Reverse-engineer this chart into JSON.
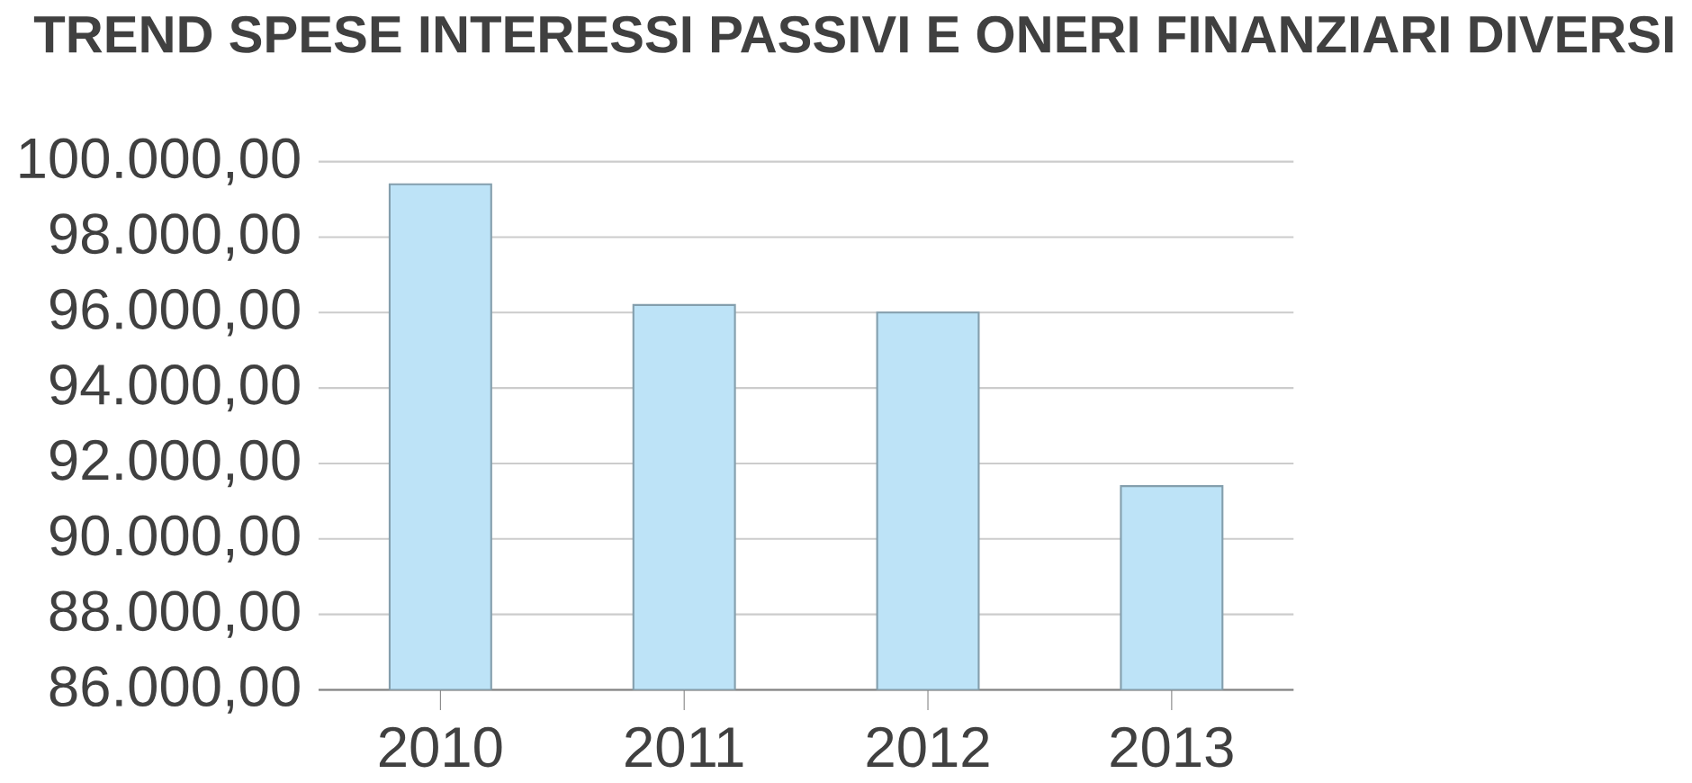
{
  "chart_data": {
    "type": "bar",
    "title": "TREND SPESE INTERESSI PASSIVI E ONERI FINANZIARI DIVERSI",
    "categories": [
      "2010",
      "2011",
      "2012",
      "2013"
    ],
    "values": [
      99400,
      96200,
      96000,
      91400
    ],
    "color": "#bde3f7",
    "ylim": [
      86000,
      100000
    ],
    "yticks": [
      {
        "value": 86000,
        "label": "86.000,00"
      },
      {
        "value": 88000,
        "label": "88.000,00"
      },
      {
        "value": 90000,
        "label": "90.000,00"
      },
      {
        "value": 92000,
        "label": "92.000,00"
      },
      {
        "value": 94000,
        "label": "94.000,00"
      },
      {
        "value": 96000,
        "label": "96.000,00"
      },
      {
        "value": 98000,
        "label": "98.000,00"
      },
      {
        "value": 100000,
        "label": "100.000,00"
      }
    ],
    "grid": "y"
  }
}
